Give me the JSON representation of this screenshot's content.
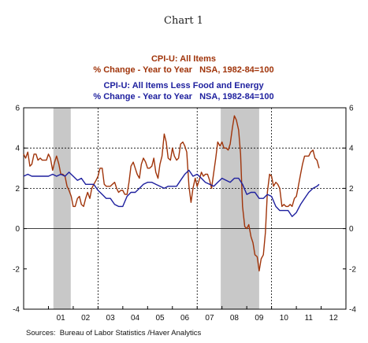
{
  "figure_title": "Chart 1",
  "source": "Sources:  Bureau of Labor Statistics /Haver Analytics",
  "chart_data": {
    "type": "line",
    "title": "Chart 1",
    "x_unit": "year (decimal)",
    "xlim": [
      2000.0,
      2013.0
    ],
    "ylim": [
      -4,
      6
    ],
    "yticks": [
      -4,
      -2,
      0,
      2,
      4,
      6
    ],
    "x_tick_labels": [
      "01",
      "02",
      "03",
      "04",
      "05",
      "06",
      "07",
      "08",
      "09",
      "10",
      "11",
      "12"
    ],
    "grid": "dashed, at 2 and 4 on y and at 2003, 2007, 2010 on x",
    "legend": [
      {
        "line1": "CPI-U: All Items",
        "line2": "% Change - Year to Year   NSA, 1982-84=100",
        "color": "#a0340a"
      },
      {
        "line1": "CPI-U: All Items Less Food and Energy",
        "line2": "% Change - Year to Year   NSA, 1982-84=100",
        "color": "#1d1f9e"
      }
    ],
    "recessions": [
      [
        2001.2,
        2001.9
      ],
      [
        2007.95,
        2009.5
      ]
    ],
    "series": [
      {
        "name": "CPI-U: All Items",
        "color": "#a0340a",
        "points": [
          [
            2000.0,
            3.7
          ],
          [
            2000.08,
            3.5
          ],
          [
            2000.17,
            3.8
          ],
          [
            2000.25,
            3.1
          ],
          [
            2000.33,
            3.2
          ],
          [
            2000.42,
            3.7
          ],
          [
            2000.5,
            3.7
          ],
          [
            2000.58,
            3.4
          ],
          [
            2000.67,
            3.5
          ],
          [
            2000.75,
            3.4
          ],
          [
            2000.83,
            3.4
          ],
          [
            2000.92,
            3.4
          ],
          [
            2001.0,
            3.7
          ],
          [
            2001.08,
            3.5
          ],
          [
            2001.17,
            2.9
          ],
          [
            2001.25,
            3.3
          ],
          [
            2001.33,
            3.6
          ],
          [
            2001.42,
            3.2
          ],
          [
            2001.5,
            2.7
          ],
          [
            2001.58,
            2.7
          ],
          [
            2001.67,
            2.6
          ],
          [
            2001.75,
            2.1
          ],
          [
            2001.83,
            1.9
          ],
          [
            2001.92,
            1.6
          ],
          [
            2002.0,
            1.1
          ],
          [
            2002.08,
            1.1
          ],
          [
            2002.17,
            1.5
          ],
          [
            2002.25,
            1.6
          ],
          [
            2002.33,
            1.2
          ],
          [
            2002.42,
            1.1
          ],
          [
            2002.5,
            1.5
          ],
          [
            2002.58,
            1.8
          ],
          [
            2002.67,
            1.5
          ],
          [
            2002.75,
            2.0
          ],
          [
            2002.83,
            2.2
          ],
          [
            2002.92,
            2.4
          ],
          [
            2003.0,
            2.6
          ],
          [
            2003.08,
            3.0
          ],
          [
            2003.17,
            3.0
          ],
          [
            2003.25,
            2.2
          ],
          [
            2003.33,
            2.1
          ],
          [
            2003.42,
            2.1
          ],
          [
            2003.5,
            2.1
          ],
          [
            2003.58,
            2.2
          ],
          [
            2003.67,
            2.3
          ],
          [
            2003.75,
            2.0
          ],
          [
            2003.83,
            1.8
          ],
          [
            2003.92,
            1.9
          ],
          [
            2004.0,
            1.9
          ],
          [
            2004.08,
            1.7
          ],
          [
            2004.17,
            1.7
          ],
          [
            2004.25,
            2.3
          ],
          [
            2004.33,
            3.1
          ],
          [
            2004.42,
            3.3
          ],
          [
            2004.5,
            3.0
          ],
          [
            2004.58,
            2.7
          ],
          [
            2004.67,
            2.5
          ],
          [
            2004.75,
            3.2
          ],
          [
            2004.83,
            3.5
          ],
          [
            2004.92,
            3.3
          ],
          [
            2005.0,
            3.0
          ],
          [
            2005.08,
            3.0
          ],
          [
            2005.17,
            3.1
          ],
          [
            2005.25,
            3.5
          ],
          [
            2005.33,
            2.8
          ],
          [
            2005.42,
            2.5
          ],
          [
            2005.5,
            3.2
          ],
          [
            2005.58,
            3.6
          ],
          [
            2005.67,
            4.7
          ],
          [
            2005.75,
            4.3
          ],
          [
            2005.83,
            3.5
          ],
          [
            2005.92,
            3.4
          ],
          [
            2006.0,
            4.0
          ],
          [
            2006.08,
            3.6
          ],
          [
            2006.17,
            3.4
          ],
          [
            2006.25,
            3.5
          ],
          [
            2006.33,
            4.2
          ],
          [
            2006.42,
            4.3
          ],
          [
            2006.5,
            4.1
          ],
          [
            2006.58,
            3.8
          ],
          [
            2006.67,
            2.1
          ],
          [
            2006.75,
            1.3
          ],
          [
            2006.83,
            2.0
          ],
          [
            2006.92,
            2.5
          ],
          [
            2007.0,
            2.1
          ],
          [
            2007.08,
            2.4
          ],
          [
            2007.17,
            2.8
          ],
          [
            2007.25,
            2.6
          ],
          [
            2007.33,
            2.7
          ],
          [
            2007.42,
            2.7
          ],
          [
            2007.5,
            2.4
          ],
          [
            2007.58,
            2.0
          ],
          [
            2007.67,
            2.8
          ],
          [
            2007.75,
            3.5
          ],
          [
            2007.83,
            4.3
          ],
          [
            2007.92,
            4.1
          ],
          [
            2008.0,
            4.3
          ],
          [
            2008.08,
            4.0
          ],
          [
            2008.17,
            4.0
          ],
          [
            2008.25,
            3.9
          ],
          [
            2008.33,
            4.2
          ],
          [
            2008.42,
            5.0
          ],
          [
            2008.5,
            5.6
          ],
          [
            2008.58,
            5.4
          ],
          [
            2008.67,
            4.9
          ],
          [
            2008.75,
            3.7
          ],
          [
            2008.83,
            1.1
          ],
          [
            2008.92,
            0.1
          ],
          [
            2009.0,
            0.0
          ],
          [
            2009.08,
            0.2
          ],
          [
            2009.17,
            -0.4
          ],
          [
            2009.25,
            -0.7
          ],
          [
            2009.33,
            -1.3
          ],
          [
            2009.42,
            -1.4
          ],
          [
            2009.5,
            -2.1
          ],
          [
            2009.58,
            -1.5
          ],
          [
            2009.67,
            -1.3
          ],
          [
            2009.75,
            -0.2
          ],
          [
            2009.83,
            1.8
          ],
          [
            2009.92,
            2.7
          ],
          [
            2010.0,
            2.6
          ],
          [
            2010.08,
            2.1
          ],
          [
            2010.17,
            2.3
          ],
          [
            2010.25,
            2.2
          ],
          [
            2010.33,
            2.0
          ],
          [
            2010.42,
            1.1
          ],
          [
            2010.5,
            1.2
          ],
          [
            2010.58,
            1.1
          ],
          [
            2010.67,
            1.1
          ],
          [
            2010.75,
            1.2
          ],
          [
            2010.83,
            1.1
          ],
          [
            2010.92,
            1.5
          ],
          [
            2011.0,
            1.6
          ],
          [
            2011.08,
            2.1
          ],
          [
            2011.17,
            2.7
          ],
          [
            2011.25,
            3.2
          ],
          [
            2011.33,
            3.6
          ],
          [
            2011.42,
            3.6
          ],
          [
            2011.5,
            3.6
          ],
          [
            2011.58,
            3.8
          ],
          [
            2011.67,
            3.9
          ],
          [
            2011.75,
            3.5
          ],
          [
            2011.83,
            3.4
          ],
          [
            2011.92,
            3.0
          ]
        ]
      },
      {
        "name": "CPI-U: All Items Less Food and Energy",
        "color": "#1d1f9e",
        "points": [
          [
            2000.0,
            2.6
          ],
          [
            2000.17,
            2.7
          ],
          [
            2000.33,
            2.6
          ],
          [
            2000.5,
            2.6
          ],
          [
            2000.67,
            2.6
          ],
          [
            2000.83,
            2.6
          ],
          [
            2001.0,
            2.6
          ],
          [
            2001.17,
            2.7
          ],
          [
            2001.33,
            2.6
          ],
          [
            2001.5,
            2.7
          ],
          [
            2001.67,
            2.6
          ],
          [
            2001.83,
            2.8
          ],
          [
            2002.0,
            2.6
          ],
          [
            2002.17,
            2.4
          ],
          [
            2002.33,
            2.5
          ],
          [
            2002.5,
            2.2
          ],
          [
            2002.67,
            2.2
          ],
          [
            2002.83,
            2.2
          ],
          [
            2003.0,
            1.9
          ],
          [
            2003.17,
            1.7
          ],
          [
            2003.33,
            1.5
          ],
          [
            2003.5,
            1.5
          ],
          [
            2003.67,
            1.2
          ],
          [
            2003.83,
            1.1
          ],
          [
            2004.0,
            1.1
          ],
          [
            2004.17,
            1.6
          ],
          [
            2004.33,
            1.8
          ],
          [
            2004.5,
            1.8
          ],
          [
            2004.67,
            2.0
          ],
          [
            2004.83,
            2.2
          ],
          [
            2005.0,
            2.3
          ],
          [
            2005.17,
            2.3
          ],
          [
            2005.33,
            2.2
          ],
          [
            2005.5,
            2.1
          ],
          [
            2005.67,
            2.0
          ],
          [
            2005.83,
            2.1
          ],
          [
            2006.0,
            2.1
          ],
          [
            2006.17,
            2.1
          ],
          [
            2006.33,
            2.4
          ],
          [
            2006.5,
            2.7
          ],
          [
            2006.67,
            2.9
          ],
          [
            2006.83,
            2.6
          ],
          [
            2007.0,
            2.7
          ],
          [
            2007.17,
            2.5
          ],
          [
            2007.33,
            2.3
          ],
          [
            2007.5,
            2.2
          ],
          [
            2007.67,
            2.1
          ],
          [
            2007.83,
            2.3
          ],
          [
            2008.0,
            2.5
          ],
          [
            2008.17,
            2.4
          ],
          [
            2008.33,
            2.3
          ],
          [
            2008.5,
            2.5
          ],
          [
            2008.67,
            2.5
          ],
          [
            2008.83,
            2.2
          ],
          [
            2009.0,
            1.7
          ],
          [
            2009.17,
            1.8
          ],
          [
            2009.33,
            1.8
          ],
          [
            2009.5,
            1.5
          ],
          [
            2009.67,
            1.5
          ],
          [
            2009.83,
            1.7
          ],
          [
            2010.0,
            1.6
          ],
          [
            2010.17,
            1.1
          ],
          [
            2010.33,
            0.9
          ],
          [
            2010.5,
            0.9
          ],
          [
            2010.67,
            0.9
          ],
          [
            2010.83,
            0.6
          ],
          [
            2011.0,
            0.8
          ],
          [
            2011.17,
            1.2
          ],
          [
            2011.33,
            1.5
          ],
          [
            2011.5,
            1.8
          ],
          [
            2011.67,
            2.0
          ],
          [
            2011.83,
            2.1
          ],
          [
            2011.92,
            2.2
          ]
        ]
      }
    ]
  }
}
